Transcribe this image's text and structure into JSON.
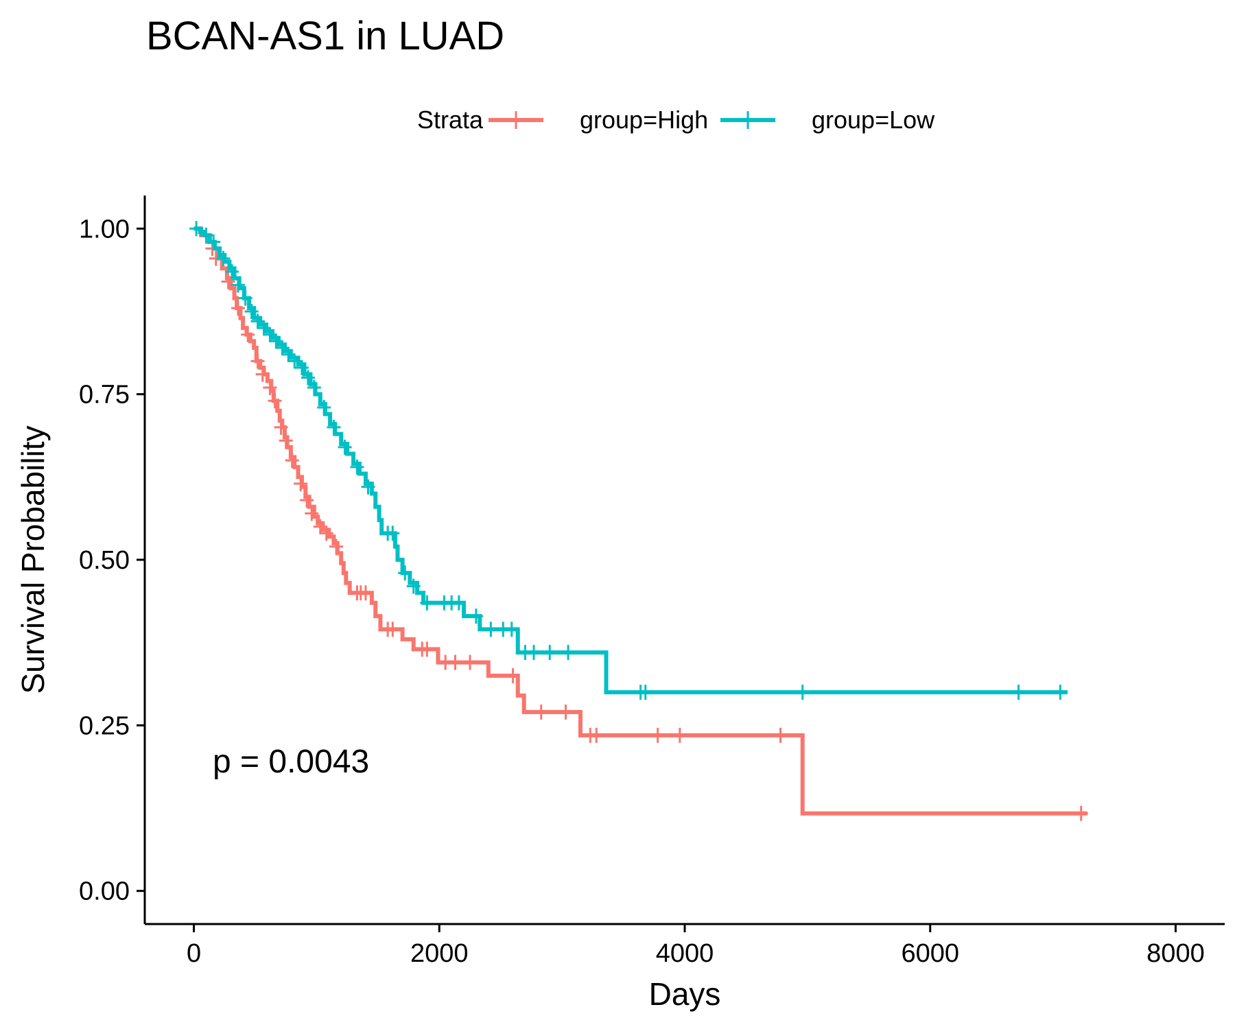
{
  "chart_data": {
    "type": "line",
    "subtype": "kaplan-meier step",
    "title": "BCAN-AS1 in LUAD",
    "xlabel": "Days",
    "ylabel": "Survival Probability",
    "xlim": [
      -400,
      8400
    ],
    "ylim": [
      -0.05,
      1.05
    ],
    "x_ticks": [
      0,
      2000,
      4000,
      6000,
      8000
    ],
    "x_tick_labels": [
      "0",
      "2000",
      "4000",
      "6000",
      "8000"
    ],
    "y_ticks": [
      0,
      0.25,
      0.5,
      0.75,
      1.0
    ],
    "y_tick_labels": [
      "0.00",
      "0.25",
      "0.50",
      "0.75",
      "1.00"
    ],
    "grid": false,
    "legend": {
      "title": "Strata",
      "placement": "top",
      "entries": [
        "group=High",
        "group=Low"
      ]
    },
    "annotation": "p = 0.0043",
    "series": [
      {
        "name": "group=High",
        "color": "#F8766D",
        "steps": [
          [
            0,
            1.0
          ],
          [
            60,
            0.99
          ],
          [
            110,
            0.98
          ],
          [
            160,
            0.97
          ],
          [
            200,
            0.955
          ],
          [
            230,
            0.94
          ],
          [
            270,
            0.925
          ],
          [
            300,
            0.91
          ],
          [
            330,
            0.895
          ],
          [
            350,
            0.88
          ],
          [
            380,
            0.865
          ],
          [
            400,
            0.85
          ],
          [
            430,
            0.84
          ],
          [
            460,
            0.83
          ],
          [
            490,
            0.82
          ],
          [
            510,
            0.8
          ],
          [
            540,
            0.79
          ],
          [
            570,
            0.78
          ],
          [
            600,
            0.77
          ],
          [
            630,
            0.755
          ],
          [
            650,
            0.74
          ],
          [
            680,
            0.725
          ],
          [
            700,
            0.71
          ],
          [
            720,
            0.7
          ],
          [
            740,
            0.685
          ],
          [
            760,
            0.67
          ],
          [
            790,
            0.655
          ],
          [
            820,
            0.64
          ],
          [
            850,
            0.625
          ],
          [
            880,
            0.61
          ],
          [
            910,
            0.595
          ],
          [
            940,
            0.58
          ],
          [
            980,
            0.565
          ],
          [
            1010,
            0.555
          ],
          [
            1050,
            0.545
          ],
          [
            1100,
            0.535
          ],
          [
            1140,
            0.525
          ],
          [
            1170,
            0.51
          ],
          [
            1200,
            0.495
          ],
          [
            1220,
            0.48
          ],
          [
            1240,
            0.465
          ],
          [
            1270,
            0.45
          ],
          [
            1450,
            0.435
          ],
          [
            1480,
            0.415
          ],
          [
            1520,
            0.395
          ],
          [
            1700,
            0.38
          ],
          [
            1790,
            0.365
          ],
          [
            1990,
            0.345
          ],
          [
            2400,
            0.325
          ],
          [
            2640,
            0.295
          ],
          [
            2690,
            0.27
          ],
          [
            3150,
            0.235
          ],
          [
            4960,
            0.117
          ],
          [
            7280,
            0.117
          ]
        ],
        "censored": [
          [
            150,
            0.97
          ],
          [
            180,
            0.955
          ],
          [
            280,
            0.92
          ],
          [
            360,
            0.88
          ],
          [
            440,
            0.84
          ],
          [
            520,
            0.8
          ],
          [
            560,
            0.78
          ],
          [
            620,
            0.76
          ],
          [
            660,
            0.74
          ],
          [
            710,
            0.7
          ],
          [
            750,
            0.68
          ],
          [
            800,
            0.65
          ],
          [
            870,
            0.615
          ],
          [
            920,
            0.59
          ],
          [
            960,
            0.57
          ],
          [
            1030,
            0.55
          ],
          [
            1080,
            0.54
          ],
          [
            1160,
            0.52
          ],
          [
            1330,
            0.45
          ],
          [
            1360,
            0.45
          ],
          [
            1400,
            0.45
          ],
          [
            1580,
            0.395
          ],
          [
            1620,
            0.395
          ],
          [
            1860,
            0.365
          ],
          [
            1900,
            0.365
          ],
          [
            2050,
            0.345
          ],
          [
            2130,
            0.345
          ],
          [
            2250,
            0.345
          ],
          [
            2600,
            0.325
          ],
          [
            2830,
            0.27
          ],
          [
            3030,
            0.27
          ],
          [
            3230,
            0.235
          ],
          [
            3280,
            0.235
          ],
          [
            3780,
            0.235
          ],
          [
            3960,
            0.235
          ],
          [
            4780,
            0.235
          ],
          [
            7230,
            0.117
          ]
        ]
      },
      {
        "name": "group=Low",
        "color": "#00BFC4",
        "steps": [
          [
            0,
            1.0
          ],
          [
            50,
            0.995
          ],
          [
            90,
            0.99
          ],
          [
            130,
            0.98
          ],
          [
            170,
            0.97
          ],
          [
            210,
            0.96
          ],
          [
            250,
            0.95
          ],
          [
            290,
            0.94
          ],
          [
            330,
            0.925
          ],
          [
            370,
            0.91
          ],
          [
            410,
            0.895
          ],
          [
            450,
            0.88
          ],
          [
            490,
            0.865
          ],
          [
            540,
            0.855
          ],
          [
            590,
            0.845
          ],
          [
            640,
            0.835
          ],
          [
            690,
            0.825
          ],
          [
            740,
            0.815
          ],
          [
            790,
            0.805
          ],
          [
            850,
            0.795
          ],
          [
            900,
            0.78
          ],
          [
            950,
            0.765
          ],
          [
            990,
            0.75
          ],
          [
            1030,
            0.735
          ],
          [
            1070,
            0.72
          ],
          [
            1110,
            0.705
          ],
          [
            1150,
            0.69
          ],
          [
            1200,
            0.675
          ],
          [
            1250,
            0.66
          ],
          [
            1300,
            0.645
          ],
          [
            1350,
            0.63
          ],
          [
            1400,
            0.615
          ],
          [
            1450,
            0.6
          ],
          [
            1480,
            0.58
          ],
          [
            1510,
            0.56
          ],
          [
            1530,
            0.54
          ],
          [
            1640,
            0.52
          ],
          [
            1660,
            0.5
          ],
          [
            1700,
            0.48
          ],
          [
            1760,
            0.465
          ],
          [
            1820,
            0.45
          ],
          [
            1870,
            0.435
          ],
          [
            2200,
            0.415
          ],
          [
            2330,
            0.395
          ],
          [
            2640,
            0.36
          ],
          [
            3360,
            0.3
          ],
          [
            7120,
            0.3
          ]
        ],
        "censored": [
          [
            20,
            1.0
          ],
          [
            100,
            0.99
          ],
          [
            160,
            0.98
          ],
          [
            240,
            0.955
          ],
          [
            310,
            0.935
          ],
          [
            360,
            0.915
          ],
          [
            420,
            0.895
          ],
          [
            470,
            0.875
          ],
          [
            520,
            0.86
          ],
          [
            570,
            0.85
          ],
          [
            620,
            0.84
          ],
          [
            670,
            0.83
          ],
          [
            720,
            0.82
          ],
          [
            770,
            0.81
          ],
          [
            820,
            0.8
          ],
          [
            880,
            0.79
          ],
          [
            930,
            0.775
          ],
          [
            980,
            0.76
          ],
          [
            1060,
            0.73
          ],
          [
            1140,
            0.7
          ],
          [
            1230,
            0.67
          ],
          [
            1330,
            0.64
          ],
          [
            1420,
            0.61
          ],
          [
            1580,
            0.54
          ],
          [
            1620,
            0.54
          ],
          [
            1720,
            0.48
          ],
          [
            1790,
            0.46
          ],
          [
            1900,
            0.435
          ],
          [
            2040,
            0.435
          ],
          [
            2100,
            0.435
          ],
          [
            2160,
            0.435
          ],
          [
            2300,
            0.415
          ],
          [
            2420,
            0.395
          ],
          [
            2520,
            0.395
          ],
          [
            2590,
            0.395
          ],
          [
            2700,
            0.36
          ],
          [
            2770,
            0.36
          ],
          [
            2900,
            0.36
          ],
          [
            3050,
            0.36
          ],
          [
            3640,
            0.3
          ],
          [
            3680,
            0.3
          ],
          [
            4960,
            0.3
          ],
          [
            6720,
            0.3
          ],
          [
            7060,
            0.3
          ]
        ]
      }
    ]
  }
}
